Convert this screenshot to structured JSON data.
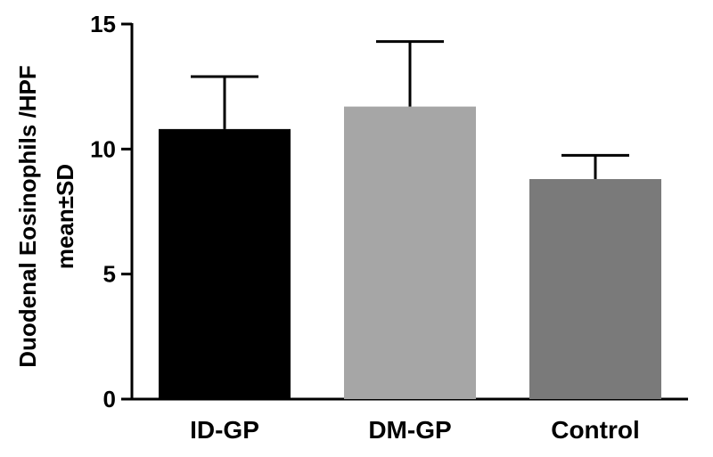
{
  "chart_data": {
    "type": "bar",
    "title": "",
    "ylabel": [
      "Duodenal Eosinophils /HPF",
      "mean±SD"
    ],
    "xlabel": "",
    "ylim": [
      0,
      15
    ],
    "yticks": [
      "0",
      "5",
      "10",
      "15"
    ],
    "categories": [
      "ID-GP",
      "DM-GP",
      "Control"
    ],
    "values": [
      10.8,
      11.7,
      8.8
    ],
    "errors": [
      2.1,
      2.6,
      0.95
    ],
    "colors": [
      "#000000",
      "#a6a6a6",
      "#7a7a7a"
    ],
    "error_bars": "upper only",
    "grid": false,
    "legend": "none"
  }
}
